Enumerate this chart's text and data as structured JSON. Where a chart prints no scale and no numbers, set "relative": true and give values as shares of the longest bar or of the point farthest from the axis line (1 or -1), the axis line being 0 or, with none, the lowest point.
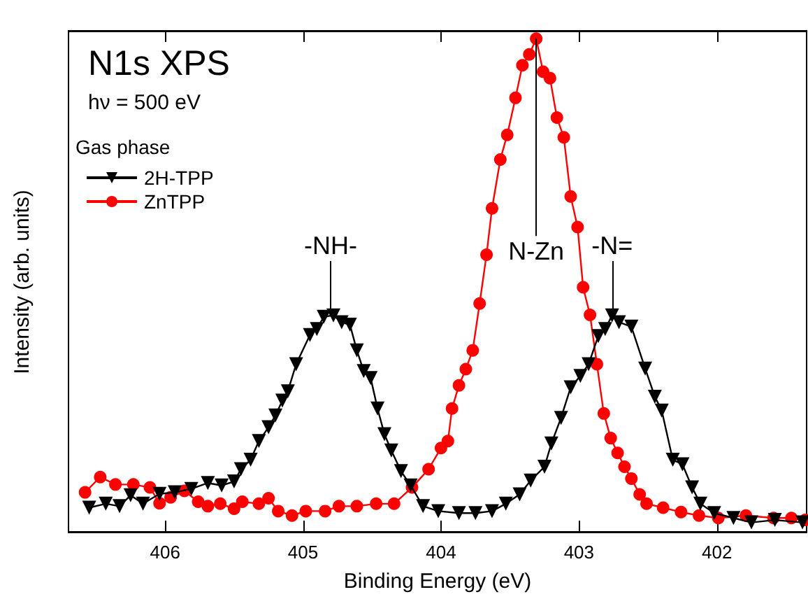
{
  "chart_data": {
    "type": "line",
    "title": "N1s XPS",
    "subtitle": "hν = 500 eV",
    "xlabel": "Binding Energy (eV)",
    "ylabel": "Intensity (arb. units)",
    "legend_title": "Gas phase",
    "legend": "top left",
    "relative": true,
    "grid": false,
    "xlim": [
      406.7,
      401.35
    ],
    "xticks": [
      406,
      405,
      404,
      403,
      402
    ],
    "series": [
      {
        "name": "2H-TPP",
        "color": "#000000",
        "marker": "triangle",
        "x": [
          406.55,
          406.43,
          406.33,
          406.25,
          406.16,
          406.04,
          405.93,
          405.81,
          405.69,
          405.59,
          405.5,
          405.45,
          405.38,
          405.32,
          405.25,
          405.2,
          405.15,
          405.11,
          405.05,
          404.95,
          404.9,
          404.85,
          404.78,
          404.72,
          404.66,
          404.61,
          404.56,
          404.51,
          404.46,
          404.41,
          404.36,
          404.29,
          404.22,
          404.13,
          404.02,
          403.87,
          403.75,
          403.63,
          403.53,
          403.43,
          403.35,
          403.25,
          403.2,
          403.13,
          403.06,
          402.99,
          402.93,
          402.86,
          402.81,
          402.76,
          402.71,
          402.62,
          402.52,
          402.45,
          402.4,
          402.32,
          402.25,
          402.18,
          402.12,
          402.02,
          401.88,
          401.75,
          401.58,
          401.38
        ],
        "values": [
          0.049,
          0.057,
          0.052,
          0.074,
          0.057,
          0.077,
          0.08,
          0.087,
          0.099,
          0.094,
          0.102,
          0.127,
          0.146,
          0.184,
          0.212,
          0.236,
          0.266,
          0.285,
          0.34,
          0.399,
          0.411,
          0.436,
          0.439,
          0.425,
          0.42,
          0.368,
          0.326,
          0.312,
          0.25,
          0.198,
          0.165,
          0.123,
          0.094,
          0.052,
          0.042,
          0.038,
          0.038,
          0.042,
          0.057,
          0.076,
          0.104,
          0.132,
          0.179,
          0.231,
          0.293,
          0.316,
          0.34,
          0.397,
          0.411,
          0.439,
          0.425,
          0.416,
          0.331,
          0.274,
          0.246,
          0.146,
          0.137,
          0.09,
          0.057,
          0.038,
          0.028,
          0.019,
          0.024,
          0.019
        ]
      },
      {
        "name": "ZnTPP",
        "color": "#ff0000",
        "marker": "circle",
        "x": [
          406.58,
          406.47,
          406.36,
          406.23,
          406.11,
          406.04,
          405.96,
          405.86,
          405.76,
          405.69,
          405.6,
          405.5,
          405.44,
          405.32,
          405.25,
          405.18,
          405.08,
          404.98,
          404.84,
          404.74,
          404.61,
          404.47,
          404.34,
          404.21,
          404.09,
          404.0,
          403.95,
          403.92,
          403.87,
          403.82,
          403.77,
          403.72,
          403.67,
          403.63,
          403.57,
          403.52,
          403.46,
          403.41,
          403.36,
          403.31,
          403.26,
          403.21,
          403.16,
          403.11,
          403.06,
          403.01,
          402.97,
          402.92,
          402.87,
          402.82,
          402.77,
          402.72,
          402.67,
          402.62,
          402.56,
          402.51,
          402.39,
          402.26,
          402.13,
          401.99,
          401.79,
          401.59,
          401.46,
          401.36
        ],
        "values": [
          0.08,
          0.111,
          0.096,
          0.096,
          0.09,
          0.058,
          0.07,
          0.083,
          0.061,
          0.052,
          0.057,
          0.047,
          0.061,
          0.057,
          0.068,
          0.042,
          0.033,
          0.042,
          0.042,
          0.052,
          0.052,
          0.057,
          0.057,
          0.09,
          0.127,
          0.17,
          0.184,
          0.25,
          0.297,
          0.33,
          0.368,
          0.463,
          0.562,
          0.656,
          0.755,
          0.805,
          0.88,
          0.946,
          0.968,
          1,
          0.933,
          0.92,
          0.84,
          0.8,
          0.68,
          0.618,
          0.496,
          0.44,
          0.34,
          0.24,
          0.19,
          0.16,
          0.132,
          0.108,
          0.076,
          0.057,
          0.049,
          0.04,
          0.033,
          0.028,
          0.033,
          0.028,
          0.028,
          0.024
        ]
      }
    ],
    "annotations": [
      {
        "text": "-NH-",
        "x": 404.8,
        "y": 0.439
      },
      {
        "text": "N-Zn",
        "x": 403.31,
        "y": 1
      },
      {
        "text": "-N=",
        "x": 402.76,
        "y": 0.439
      }
    ]
  }
}
